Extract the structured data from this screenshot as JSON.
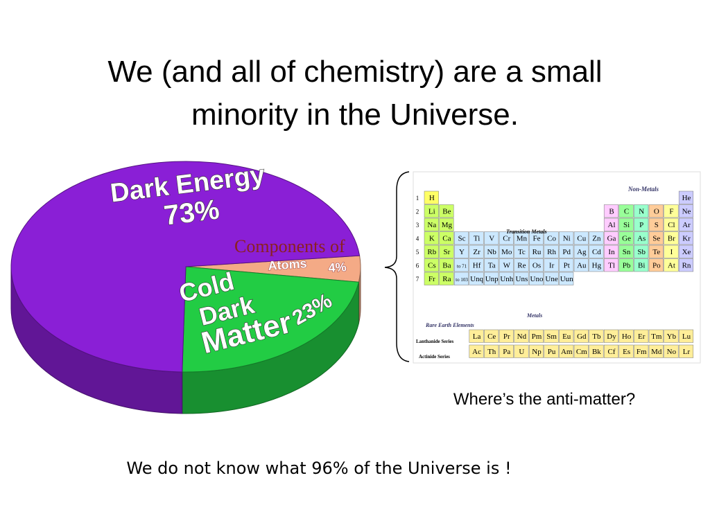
{
  "title_lines": [
    "We (and all of chemistry) are a small",
    "minority in the Universe."
  ],
  "chart_data": {
    "type": "pie",
    "categories": [
      "Dark Energy",
      "Cold Dark Matter",
      "Atoms"
    ],
    "values": [
      73,
      23,
      4
    ],
    "value_labels": [
      "73%",
      "23%",
      "4%"
    ],
    "colors": [
      "#8a1fd6",
      "#22cc44",
      "#f4aa86"
    ]
  },
  "overlay_text": "Components of",
  "periodic_table": {
    "periods": [
      "1",
      "2",
      "3",
      "4",
      "5",
      "6",
      "7"
    ],
    "rows": [
      [
        "H",
        null,
        null,
        null,
        null,
        null,
        null,
        null,
        null,
        null,
        null,
        null,
        null,
        null,
        null,
        null,
        null,
        "He"
      ],
      [
        "Li",
        "Be",
        null,
        null,
        null,
        null,
        null,
        null,
        null,
        null,
        null,
        null,
        "B",
        "C",
        "N",
        "O",
        "F",
        "Ne"
      ],
      [
        "Na",
        "Mg",
        null,
        null,
        null,
        null,
        null,
        null,
        null,
        null,
        null,
        null,
        "Al",
        "Si",
        "P",
        "S",
        "Cl",
        "Ar"
      ],
      [
        "K",
        "Ca",
        "Sc",
        "Ti",
        "V",
        "Cr",
        "Mn",
        "Fe",
        "Co",
        "Ni",
        "Cu",
        "Zn",
        "Ga",
        "Ge",
        "As",
        "Se",
        "Br",
        "Kr"
      ],
      [
        "Rb",
        "Sr",
        "Y",
        "Zr",
        "Nb",
        "Mo",
        "Tc",
        "Ru",
        "Rh",
        "Pd",
        "Ag",
        "Cd",
        "In",
        "Sn",
        "Sb",
        "Te",
        "I",
        "Xe"
      ],
      [
        "Cs",
        "Ba",
        "to 71",
        "Hf",
        "Ta",
        "W",
        "Re",
        "Os",
        "Ir",
        "Pt",
        "Au",
        "Hg",
        "Tl",
        "Pb",
        "Bi",
        "Po",
        "At",
        "Rn"
      ],
      [
        "Fr",
        "Ra",
        "to 103",
        "Unq",
        "Unp",
        "Unh",
        "Uns",
        "Uno",
        "Une",
        "Uun",
        null,
        null,
        null,
        null,
        null,
        null,
        null,
        null
      ]
    ],
    "lanthanides": [
      "La",
      "Ce",
      "Pr",
      "Nd",
      "Pm",
      "Sm",
      "Eu",
      "Gd",
      "Tb",
      "Dy",
      "Ho",
      "Er",
      "Tm",
      "Yb",
      "Lu"
    ],
    "actinides": [
      "Ac",
      "Th",
      "Pa",
      "U",
      "Np",
      "Pu",
      "Am",
      "Cm",
      "Bk",
      "Cf",
      "Es",
      "Fm",
      "Md",
      "No",
      "Lr"
    ],
    "labels": {
      "nonmetals": "Non-Metals",
      "transition": "Transition Metals",
      "metals": "Metals",
      "rare_earth": "Rare Earth Elements",
      "lanthanide_series": "Lanthanide Series",
      "actinide_series": "Actinide Series"
    }
  },
  "question": "Where’s the anti-matter?",
  "conclusion": "We do not know what 96% of the Universe is !"
}
